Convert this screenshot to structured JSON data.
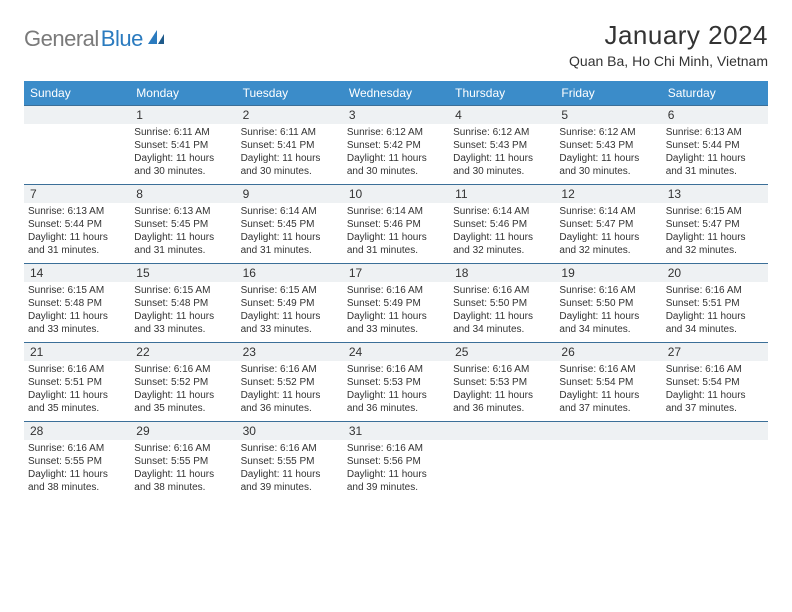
{
  "logo": {
    "text_gray": "General",
    "text_blue": "Blue"
  },
  "title": "January 2024",
  "location": "Quan Ba, Ho Chi Minh, Vietnam",
  "colors": {
    "header_bg": "#3b8cc9",
    "header_text": "#ffffff",
    "daynum_bg": "#eef1f3",
    "divider": "#3b6f98",
    "body_text": "#333333",
    "logo_gray": "#7a7a7a",
    "logo_blue": "#2b7bbf"
  },
  "day_names": [
    "Sunday",
    "Monday",
    "Tuesday",
    "Wednesday",
    "Thursday",
    "Friday",
    "Saturday"
  ],
  "weeks": [
    [
      null,
      {
        "n": "1",
        "sr": "Sunrise: 6:11 AM",
        "ss": "Sunset: 5:41 PM",
        "d1": "Daylight: 11 hours",
        "d2": "and 30 minutes."
      },
      {
        "n": "2",
        "sr": "Sunrise: 6:11 AM",
        "ss": "Sunset: 5:41 PM",
        "d1": "Daylight: 11 hours",
        "d2": "and 30 minutes."
      },
      {
        "n": "3",
        "sr": "Sunrise: 6:12 AM",
        "ss": "Sunset: 5:42 PM",
        "d1": "Daylight: 11 hours",
        "d2": "and 30 minutes."
      },
      {
        "n": "4",
        "sr": "Sunrise: 6:12 AM",
        "ss": "Sunset: 5:43 PM",
        "d1": "Daylight: 11 hours",
        "d2": "and 30 minutes."
      },
      {
        "n": "5",
        "sr": "Sunrise: 6:12 AM",
        "ss": "Sunset: 5:43 PM",
        "d1": "Daylight: 11 hours",
        "d2": "and 30 minutes."
      },
      {
        "n": "6",
        "sr": "Sunrise: 6:13 AM",
        "ss": "Sunset: 5:44 PM",
        "d1": "Daylight: 11 hours",
        "d2": "and 31 minutes."
      }
    ],
    [
      {
        "n": "7",
        "sr": "Sunrise: 6:13 AM",
        "ss": "Sunset: 5:44 PM",
        "d1": "Daylight: 11 hours",
        "d2": "and 31 minutes."
      },
      {
        "n": "8",
        "sr": "Sunrise: 6:13 AM",
        "ss": "Sunset: 5:45 PM",
        "d1": "Daylight: 11 hours",
        "d2": "and 31 minutes."
      },
      {
        "n": "9",
        "sr": "Sunrise: 6:14 AM",
        "ss": "Sunset: 5:45 PM",
        "d1": "Daylight: 11 hours",
        "d2": "and 31 minutes."
      },
      {
        "n": "10",
        "sr": "Sunrise: 6:14 AM",
        "ss": "Sunset: 5:46 PM",
        "d1": "Daylight: 11 hours",
        "d2": "and 31 minutes."
      },
      {
        "n": "11",
        "sr": "Sunrise: 6:14 AM",
        "ss": "Sunset: 5:46 PM",
        "d1": "Daylight: 11 hours",
        "d2": "and 32 minutes."
      },
      {
        "n": "12",
        "sr": "Sunrise: 6:14 AM",
        "ss": "Sunset: 5:47 PM",
        "d1": "Daylight: 11 hours",
        "d2": "and 32 minutes."
      },
      {
        "n": "13",
        "sr": "Sunrise: 6:15 AM",
        "ss": "Sunset: 5:47 PM",
        "d1": "Daylight: 11 hours",
        "d2": "and 32 minutes."
      }
    ],
    [
      {
        "n": "14",
        "sr": "Sunrise: 6:15 AM",
        "ss": "Sunset: 5:48 PM",
        "d1": "Daylight: 11 hours",
        "d2": "and 33 minutes."
      },
      {
        "n": "15",
        "sr": "Sunrise: 6:15 AM",
        "ss": "Sunset: 5:48 PM",
        "d1": "Daylight: 11 hours",
        "d2": "and 33 minutes."
      },
      {
        "n": "16",
        "sr": "Sunrise: 6:15 AM",
        "ss": "Sunset: 5:49 PM",
        "d1": "Daylight: 11 hours",
        "d2": "and 33 minutes."
      },
      {
        "n": "17",
        "sr": "Sunrise: 6:16 AM",
        "ss": "Sunset: 5:49 PM",
        "d1": "Daylight: 11 hours",
        "d2": "and 33 minutes."
      },
      {
        "n": "18",
        "sr": "Sunrise: 6:16 AM",
        "ss": "Sunset: 5:50 PM",
        "d1": "Daylight: 11 hours",
        "d2": "and 34 minutes."
      },
      {
        "n": "19",
        "sr": "Sunrise: 6:16 AM",
        "ss": "Sunset: 5:50 PM",
        "d1": "Daylight: 11 hours",
        "d2": "and 34 minutes."
      },
      {
        "n": "20",
        "sr": "Sunrise: 6:16 AM",
        "ss": "Sunset: 5:51 PM",
        "d1": "Daylight: 11 hours",
        "d2": "and 34 minutes."
      }
    ],
    [
      {
        "n": "21",
        "sr": "Sunrise: 6:16 AM",
        "ss": "Sunset: 5:51 PM",
        "d1": "Daylight: 11 hours",
        "d2": "and 35 minutes."
      },
      {
        "n": "22",
        "sr": "Sunrise: 6:16 AM",
        "ss": "Sunset: 5:52 PM",
        "d1": "Daylight: 11 hours",
        "d2": "and 35 minutes."
      },
      {
        "n": "23",
        "sr": "Sunrise: 6:16 AM",
        "ss": "Sunset: 5:52 PM",
        "d1": "Daylight: 11 hours",
        "d2": "and 36 minutes."
      },
      {
        "n": "24",
        "sr": "Sunrise: 6:16 AM",
        "ss": "Sunset: 5:53 PM",
        "d1": "Daylight: 11 hours",
        "d2": "and 36 minutes."
      },
      {
        "n": "25",
        "sr": "Sunrise: 6:16 AM",
        "ss": "Sunset: 5:53 PM",
        "d1": "Daylight: 11 hours",
        "d2": "and 36 minutes."
      },
      {
        "n": "26",
        "sr": "Sunrise: 6:16 AM",
        "ss": "Sunset: 5:54 PM",
        "d1": "Daylight: 11 hours",
        "d2": "and 37 minutes."
      },
      {
        "n": "27",
        "sr": "Sunrise: 6:16 AM",
        "ss": "Sunset: 5:54 PM",
        "d1": "Daylight: 11 hours",
        "d2": "and 37 minutes."
      }
    ],
    [
      {
        "n": "28",
        "sr": "Sunrise: 6:16 AM",
        "ss": "Sunset: 5:55 PM",
        "d1": "Daylight: 11 hours",
        "d2": "and 38 minutes."
      },
      {
        "n": "29",
        "sr": "Sunrise: 6:16 AM",
        "ss": "Sunset: 5:55 PM",
        "d1": "Daylight: 11 hours",
        "d2": "and 38 minutes."
      },
      {
        "n": "30",
        "sr": "Sunrise: 6:16 AM",
        "ss": "Sunset: 5:55 PM",
        "d1": "Daylight: 11 hours",
        "d2": "and 39 minutes."
      },
      {
        "n": "31",
        "sr": "Sunrise: 6:16 AM",
        "ss": "Sunset: 5:56 PM",
        "d1": "Daylight: 11 hours",
        "d2": "and 39 minutes."
      },
      null,
      null,
      null
    ]
  ]
}
